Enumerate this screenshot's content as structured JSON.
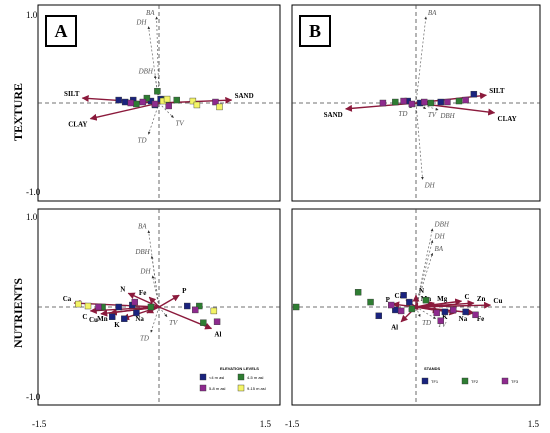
{
  "row_labels": [
    "TEXTURE",
    "NUTRIENTS"
  ],
  "axis_ticks": {
    "y_top": "1.0",
    "y_bottom": "-1.0",
    "x_left": "-1.5",
    "x_right": "1.5"
  },
  "colors": {
    "arrow": "#8b1a3c",
    "arrow_fill": "#c2607a",
    "blue": "#1a237e",
    "green": "#2e7d32",
    "purple": "#8e2a8e",
    "yellow": "#f4f466"
  },
  "chart_data": [
    {
      "panel": "A",
      "type": "scatter",
      "row": "TEXTURE",
      "vectors": [
        {
          "label": "SILT",
          "x": -0.95,
          "y": 0.05
        },
        {
          "label": "CLAY",
          "x": -0.85,
          "y": -0.16
        },
        {
          "label": "SAND",
          "x": 0.9,
          "y": 0.03
        }
      ],
      "structure_vectors": [
        {
          "label": "DH",
          "x": -0.13,
          "y": 0.78
        },
        {
          "label": "BA",
          "x": -0.03,
          "y": 0.88
        },
        {
          "label": "DBH",
          "x": -0.05,
          "y": 0.28
        },
        {
          "label": "TV",
          "x": 0.18,
          "y": -0.15
        },
        {
          "label": "TD",
          "x": -0.13,
          "y": -0.32
        }
      ],
      "points": [
        {
          "x": -0.5,
          "y": 0.03,
          "c": "blue"
        },
        {
          "x": -0.42,
          "y": 0.01,
          "c": "blue"
        },
        {
          "x": -0.32,
          "y": 0.03,
          "c": "blue"
        },
        {
          "x": -0.1,
          "y": 0.02,
          "c": "blue"
        },
        {
          "x": -0.05,
          "y": -0.02,
          "c": "blue"
        },
        {
          "x": 0.02,
          "y": 0.04,
          "c": "blue"
        },
        {
          "x": -0.28,
          "y": -0.01,
          "c": "green"
        },
        {
          "x": -0.15,
          "y": 0.05,
          "c": "green"
        },
        {
          "x": -0.02,
          "y": 0.12,
          "c": "green"
        },
        {
          "x": 0.08,
          "y": 0.03,
          "c": "green"
        },
        {
          "x": 0.22,
          "y": 0.03,
          "c": "green"
        },
        {
          "x": -0.35,
          "y": 0.0,
          "c": "purple"
        },
        {
          "x": -0.2,
          "y": 0.01,
          "c": "purple"
        },
        {
          "x": -0.05,
          "y": -0.01,
          "c": "purple"
        },
        {
          "x": 0.12,
          "y": -0.03,
          "c": "purple"
        },
        {
          "x": 0.7,
          "y": 0.01,
          "c": "purple"
        },
        {
          "x": 0.05,
          "y": 0.02,
          "c": "yellow"
        },
        {
          "x": 0.1,
          "y": 0.04,
          "c": "yellow"
        },
        {
          "x": 0.42,
          "y": 0.02,
          "c": "yellow"
        },
        {
          "x": 0.47,
          "y": -0.02,
          "c": "yellow"
        },
        {
          "x": 0.75,
          "y": -0.04,
          "c": "yellow"
        }
      ]
    },
    {
      "panel": "B",
      "type": "scatter",
      "row": "TEXTURE",
      "vectors": [
        {
          "label": "SILT",
          "x": 0.85,
          "y": 0.08
        },
        {
          "label": "CLAY",
          "x": 0.95,
          "y": -0.1
        },
        {
          "label": "SAND",
          "x": -0.85,
          "y": -0.06
        }
      ],
      "structure_vectors": [
        {
          "label": "BA",
          "x": 0.12,
          "y": 0.88
        },
        {
          "label": "DH",
          "x": 0.08,
          "y": -0.78
        },
        {
          "label": "TD",
          "x": -0.08,
          "y": -0.05
        },
        {
          "label": "TV",
          "x": 0.12,
          "y": -0.06
        },
        {
          "label": "DBH",
          "x": 0.27,
          "y": -0.07
        }
      ],
      "points": [
        {
          "x": 0.7,
          "y": 0.09,
          "c": "blue"
        },
        {
          "x": 0.3,
          "y": 0.01,
          "c": "blue"
        },
        {
          "x": -0.1,
          "y": 0.02,
          "c": "blue"
        },
        {
          "x": 0.05,
          "y": 0.0,
          "c": "blue"
        },
        {
          "x": -0.25,
          "y": 0.01,
          "c": "green"
        },
        {
          "x": 0.18,
          "y": 0.0,
          "c": "green"
        },
        {
          "x": 0.52,
          "y": 0.02,
          "c": "green"
        },
        {
          "x": -0.4,
          "y": 0.0,
          "c": "purple"
        },
        {
          "x": -0.15,
          "y": 0.02,
          "c": "purple"
        },
        {
          "x": 0.1,
          "y": 0.01,
          "c": "purple"
        },
        {
          "x": 0.38,
          "y": 0.01,
          "c": "purple"
        },
        {
          "x": 0.6,
          "y": 0.03,
          "c": "purple"
        },
        {
          "x": -0.05,
          "y": -0.01,
          "c": "purple"
        }
      ]
    },
    {
      "panel": "A",
      "type": "scatter",
      "row": "NUTRIENTS",
      "vectors": [
        {
          "label": "Ca",
          "x": -1.05,
          "y": 0.04
        },
        {
          "label": "C",
          "x": -0.85,
          "y": -0.04
        },
        {
          "label": "Cu",
          "x": -0.72,
          "y": -0.07
        },
        {
          "label": "Mn",
          "x": -0.6,
          "y": -0.06
        },
        {
          "label": "K",
          "x": -0.45,
          "y": -0.12
        },
        {
          "label": "N",
          "x": -0.38,
          "y": 0.14
        },
        {
          "label": "Fe",
          "x": -0.12,
          "y": 0.1
        },
        {
          "label": "Na",
          "x": -0.15,
          "y": -0.06
        },
        {
          "label": "P",
          "x": 0.25,
          "y": 0.12
        },
        {
          "label": "Al",
          "x": 0.65,
          "y": -0.22
        }
      ],
      "structure_vectors": [
        {
          "label": "BA",
          "x": -0.13,
          "y": 0.78
        },
        {
          "label": "DBH",
          "x": -0.09,
          "y": 0.52
        },
        {
          "label": "DH",
          "x": -0.08,
          "y": 0.32
        },
        {
          "label": "TV",
          "x": 0.1,
          "y": -0.1
        },
        {
          "label": "TD",
          "x": -0.1,
          "y": -0.26
        }
      ],
      "points": [
        {
          "x": -0.5,
          "y": 0.0,
          "c": "blue"
        },
        {
          "x": -0.33,
          "y": 0.02,
          "c": "blue"
        },
        {
          "x": -0.28,
          "y": -0.06,
          "c": "blue"
        },
        {
          "x": -0.43,
          "y": -0.12,
          "c": "blue"
        },
        {
          "x": -0.58,
          "y": -0.1,
          "c": "blue"
        },
        {
          "x": 0.35,
          "y": 0.01,
          "c": "blue"
        },
        {
          "x": -0.7,
          "y": 0.0,
          "c": "green"
        },
        {
          "x": -0.1,
          "y": 0.0,
          "c": "green"
        },
        {
          "x": 0.5,
          "y": 0.01,
          "c": "green"
        },
        {
          "x": 0.55,
          "y": -0.16,
          "c": "green"
        },
        {
          "x": -0.75,
          "y": 0.0,
          "c": "purple"
        },
        {
          "x": -0.3,
          "y": 0.05,
          "c": "purple"
        },
        {
          "x": 0.45,
          "y": -0.03,
          "c": "purple"
        },
        {
          "x": 0.72,
          "y": -0.15,
          "c": "purple"
        },
        {
          "x": -1.0,
          "y": 0.03,
          "c": "yellow"
        },
        {
          "x": -0.88,
          "y": 0.01,
          "c": "yellow"
        },
        {
          "x": 0.68,
          "y": -0.04,
          "c": "yellow"
        }
      ],
      "legend": {
        "title": "ELEVATION LEVELS",
        "entries": [
          {
            "label": "<4 m asl",
            "c": "blue"
          },
          {
            "label": "4-5 m asl",
            "c": "green"
          },
          {
            "label": "5-8 m asl",
            "c": "purple"
          },
          {
            "label": "9-15 m asl",
            "c": "yellow"
          }
        ]
      }
    },
    {
      "panel": "B",
      "type": "scatter",
      "row": "NUTRIENTS",
      "vectors": [
        {
          "label": "P",
          "x": -0.28,
          "y": 0.03
        },
        {
          "label": "Ca",
          "x": -0.12,
          "y": 0.07
        },
        {
          "label": "N",
          "x": 0.0,
          "y": 0.12
        },
        {
          "label": "Mn",
          "x": 0.02,
          "y": 0.04
        },
        {
          "label": "Mg",
          "x": 0.22,
          "y": 0.04
        },
        {
          "label": "C",
          "x": 0.55,
          "y": 0.06
        },
        {
          "label": "Zn",
          "x": 0.7,
          "y": 0.04
        },
        {
          "label": "Cu",
          "x": 0.9,
          "y": 0.02
        },
        {
          "label": "K",
          "x": 0.28,
          "y": -0.04
        },
        {
          "label": "Na",
          "x": 0.48,
          "y": -0.06
        },
        {
          "label": "Fe",
          "x": 0.7,
          "y": -0.06
        },
        {
          "label": "Al",
          "x": -0.18,
          "y": -0.15
        }
      ],
      "structure_vectors": [
        {
          "label": "DBH",
          "x": 0.2,
          "y": 0.8
        },
        {
          "label": "DH",
          "x": 0.2,
          "y": 0.68
        },
        {
          "label": "BA",
          "x": 0.2,
          "y": 0.55
        },
        {
          "label": "TD",
          "x": 0.05,
          "y": -0.1
        },
        {
          "label": "TV",
          "x": 0.24,
          "y": -0.12
        }
      ],
      "points": [
        {
          "x": -0.15,
          "y": 0.12,
          "c": "blue"
        },
        {
          "x": -0.08,
          "y": 0.05,
          "c": "blue"
        },
        {
          "x": 0.35,
          "y": -0.05,
          "c": "blue"
        },
        {
          "x": 0.6,
          "y": -0.05,
          "c": "blue"
        },
        {
          "x": -0.45,
          "y": -0.09,
          "c": "blue"
        },
        {
          "x": -0.25,
          "y": -0.03,
          "c": "blue"
        },
        {
          "x": -0.7,
          "y": 0.15,
          "c": "green"
        },
        {
          "x": -0.55,
          "y": 0.05,
          "c": "green"
        },
        {
          "x": -1.45,
          "y": 0.0,
          "c": "green"
        },
        {
          "x": -0.05,
          "y": -0.02,
          "c": "green"
        },
        {
          "x": 0.12,
          "y": 0.07,
          "c": "green"
        },
        {
          "x": -0.3,
          "y": 0.02,
          "c": "purple"
        },
        {
          "x": -0.18,
          "y": -0.04,
          "c": "purple"
        },
        {
          "x": 0.25,
          "y": -0.06,
          "c": "purple"
        },
        {
          "x": 0.45,
          "y": -0.03,
          "c": "purple"
        },
        {
          "x": 0.72,
          "y": -0.08,
          "c": "purple"
        },
        {
          "x": 0.3,
          "y": -0.14,
          "c": "purple"
        }
      ],
      "legend": {
        "title": "STANDS",
        "entries": [
          {
            "label": "TF1",
            "c": "blue"
          },
          {
            "label": "TF2",
            "c": "green"
          },
          {
            "label": "TF3",
            "c": "purple"
          }
        ]
      }
    }
  ]
}
